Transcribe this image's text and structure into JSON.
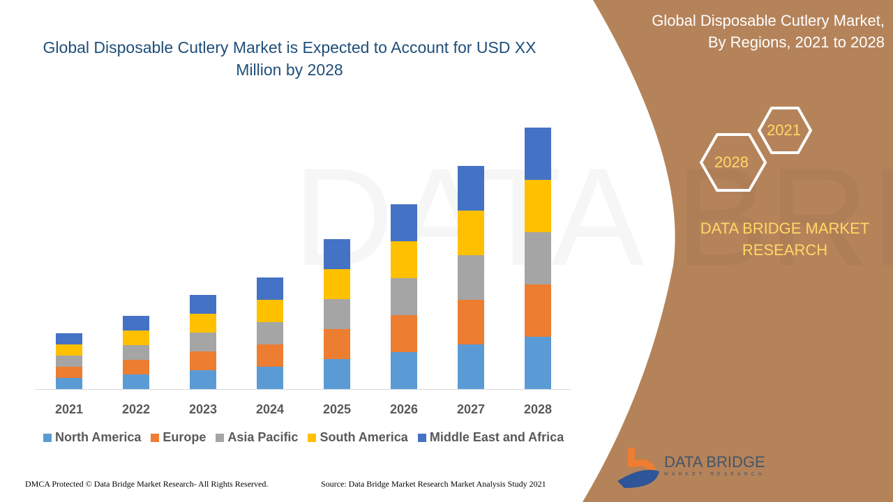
{
  "header": {
    "title": "Global Disposable Cutlery Market is Expected to Account for USD XX Million by 2028"
  },
  "side": {
    "title_line1": "Global Disposable Cutlery Market,",
    "title_line2": "By Regions, 2021 to 2028",
    "hex_start": "2021",
    "hex_end": "2028",
    "brand": "DATA BRIDGE MARKET RESEARCH",
    "logo_text": "DATA BRIDGE",
    "logo_sub": "MARKET RESEARCH"
  },
  "footer": {
    "left": "DMCA Protected © Data Bridge Market Research- All Rights Reserved.",
    "right": "Source: Data Bridge Market Research Market Analysis Study 2021"
  },
  "colors": {
    "side_panel": "#b5835a",
    "accent": "#ffd966",
    "title": "#1f4e79"
  },
  "chart_data": {
    "type": "bar",
    "stacked": true,
    "title": "Global Disposable Cutlery Market is Expected to Account for USD XX Million by 2028",
    "categories": [
      "2021",
      "2022",
      "2023",
      "2024",
      "2025",
      "2026",
      "2027",
      "2028"
    ],
    "xlabel": "",
    "ylabel": "",
    "y_axis_shown": false,
    "grid": false,
    "legend": "bottom",
    "series": [
      {
        "name": "North America",
        "color": "#5b9bd5",
        "values": [
          16,
          21,
          27,
          32,
          43,
          53,
          64,
          75
        ]
      },
      {
        "name": "Europe",
        "color": "#ed7d31",
        "values": [
          16,
          21,
          27,
          32,
          43,
          53,
          64,
          75
        ]
      },
      {
        "name": "Asia Pacific",
        "color": "#a5a5a5",
        "values": [
          16,
          21,
          27,
          32,
          43,
          53,
          64,
          75
        ]
      },
      {
        "name": "South America",
        "color": "#ffc000",
        "values": [
          16,
          21,
          27,
          32,
          43,
          53,
          64,
          75
        ]
      },
      {
        "name": "Middle East and Africa",
        "color": "#4472c4",
        "values": [
          16,
          21,
          27,
          32,
          43,
          53,
          64,
          75
        ]
      }
    ]
  }
}
